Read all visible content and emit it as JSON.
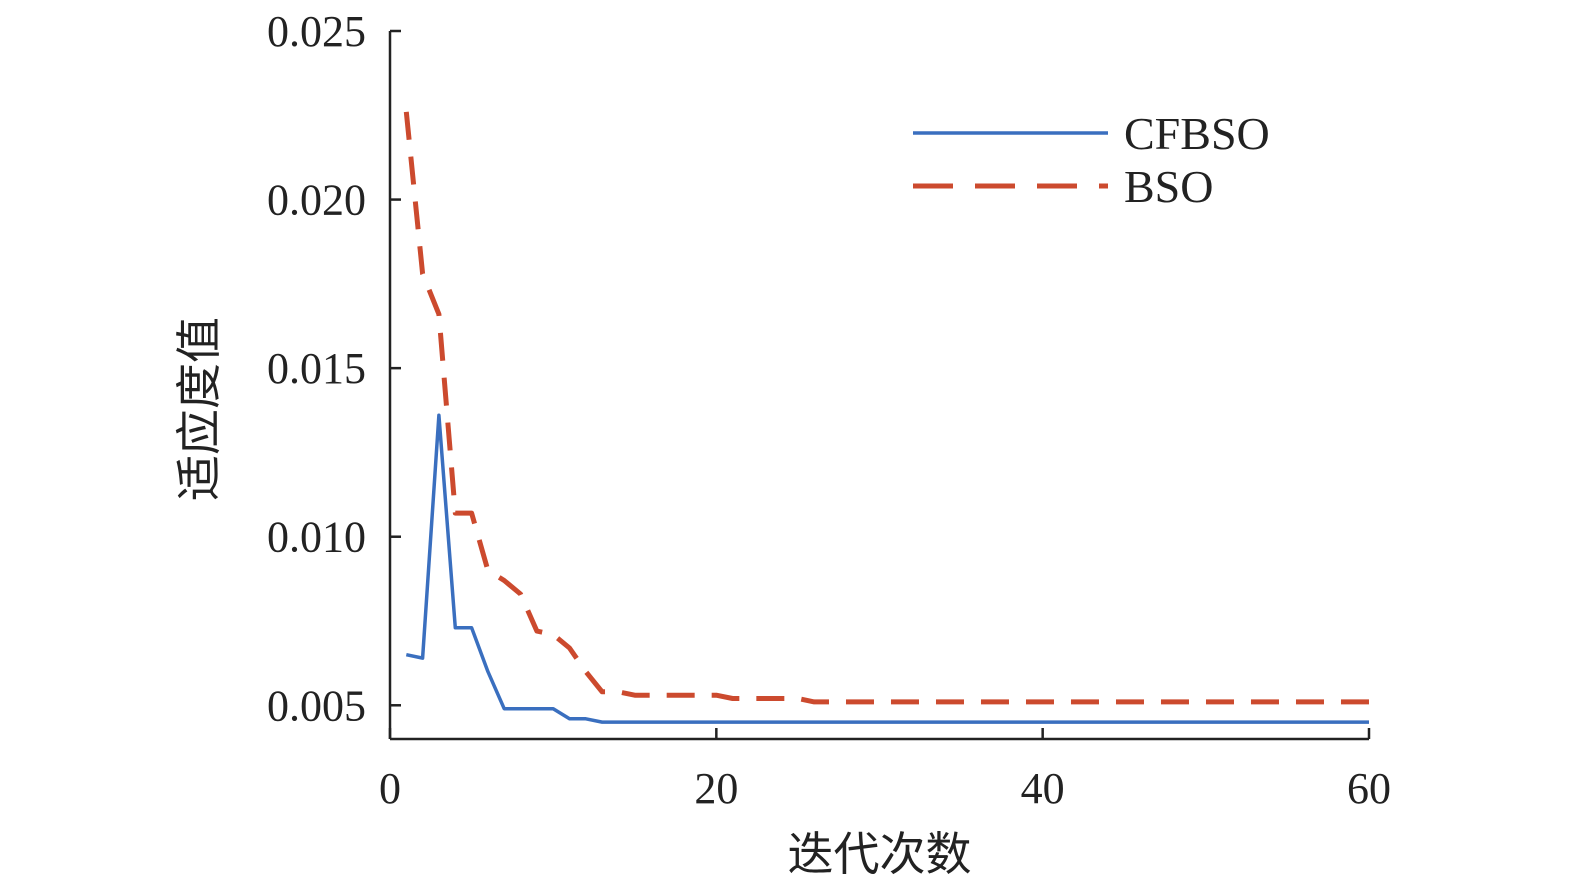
{
  "chart_data": {
    "type": "line",
    "title": "",
    "xlabel": "迭代次数",
    "ylabel": "适应度值",
    "xlim": [
      0,
      60
    ],
    "ylim": [
      0.004,
      0.025
    ],
    "x_ticks": [
      0,
      20,
      40,
      60
    ],
    "x_tick_labels": [
      "0",
      "20",
      "40",
      "60"
    ],
    "y_ticks": [
      0.005,
      0.01,
      0.015,
      0.02,
      0.025
    ],
    "y_tick_labels": [
      "0.005",
      "0.010",
      "0.015",
      "0.020",
      "0.025"
    ],
    "grid": false,
    "legend_position": "top-right",
    "series": [
      {
        "name": "CFBSO",
        "color": "#3a6fbf",
        "style": "solid",
        "x": [
          1,
          2,
          3,
          4,
          5,
          6,
          7,
          8,
          9,
          10,
          11,
          12,
          13,
          14,
          15,
          16,
          17,
          18,
          19,
          20,
          21,
          22,
          23,
          24,
          25,
          26,
          27,
          28,
          29,
          30,
          31,
          32,
          33,
          34,
          35,
          36,
          37,
          38,
          39,
          40,
          41,
          42,
          43,
          44,
          45,
          46,
          47,
          48,
          49,
          50,
          51,
          52,
          53,
          54,
          55,
          56,
          57,
          58,
          59,
          60
        ],
        "values": [
          0.0065,
          0.0064,
          0.0136,
          0.0073,
          0.0073,
          0.006,
          0.0049,
          0.0049,
          0.0049,
          0.0049,
          0.0046,
          0.0046,
          0.0045,
          0.0045,
          0.0045,
          0.0045,
          0.0045,
          0.0045,
          0.0045,
          0.0045,
          0.0045,
          0.0045,
          0.0045,
          0.0045,
          0.0045,
          0.0045,
          0.0045,
          0.0045,
          0.0045,
          0.0045,
          0.0045,
          0.0045,
          0.0045,
          0.0045,
          0.0045,
          0.0045,
          0.0045,
          0.0045,
          0.0045,
          0.0045,
          0.0045,
          0.0045,
          0.0045,
          0.0045,
          0.0045,
          0.0045,
          0.0045,
          0.0045,
          0.0045,
          0.0045,
          0.0045,
          0.0045,
          0.0045,
          0.0045,
          0.0045,
          0.0045,
          0.0045,
          0.0045,
          0.0045,
          0.0045
        ]
      },
      {
        "name": "BSO",
        "color": "#cc4a2e",
        "style": "dashed",
        "x": [
          1,
          2,
          3,
          4,
          5,
          6,
          7,
          8,
          9,
          10,
          11,
          12,
          13,
          14,
          15,
          16,
          17,
          18,
          19,
          20,
          21,
          22,
          23,
          24,
          25,
          26,
          27,
          28,
          29,
          30,
          31,
          32,
          33,
          34,
          35,
          36,
          37,
          38,
          39,
          40,
          41,
          42,
          43,
          44,
          45,
          46,
          47,
          48,
          49,
          50,
          51,
          52,
          53,
          54,
          55,
          56,
          57,
          58,
          59,
          60
        ],
        "values": [
          0.0226,
          0.0178,
          0.0166,
          0.0107,
          0.0107,
          0.009,
          0.0087,
          0.0083,
          0.0072,
          0.0071,
          0.0067,
          0.006,
          0.0054,
          0.0054,
          0.0053,
          0.0053,
          0.0053,
          0.0053,
          0.0053,
          0.0053,
          0.0052,
          0.0052,
          0.0052,
          0.0052,
          0.0052,
          0.0051,
          0.0051,
          0.0051,
          0.0051,
          0.0051,
          0.0051,
          0.0051,
          0.0051,
          0.0051,
          0.0051,
          0.0051,
          0.0051,
          0.0051,
          0.0051,
          0.0051,
          0.0051,
          0.0051,
          0.0051,
          0.0051,
          0.0051,
          0.0051,
          0.0051,
          0.0051,
          0.0051,
          0.0051,
          0.0051,
          0.0051,
          0.0051,
          0.0051,
          0.0051,
          0.0051,
          0.0051,
          0.0051,
          0.0051,
          0.0051
        ]
      }
    ]
  }
}
